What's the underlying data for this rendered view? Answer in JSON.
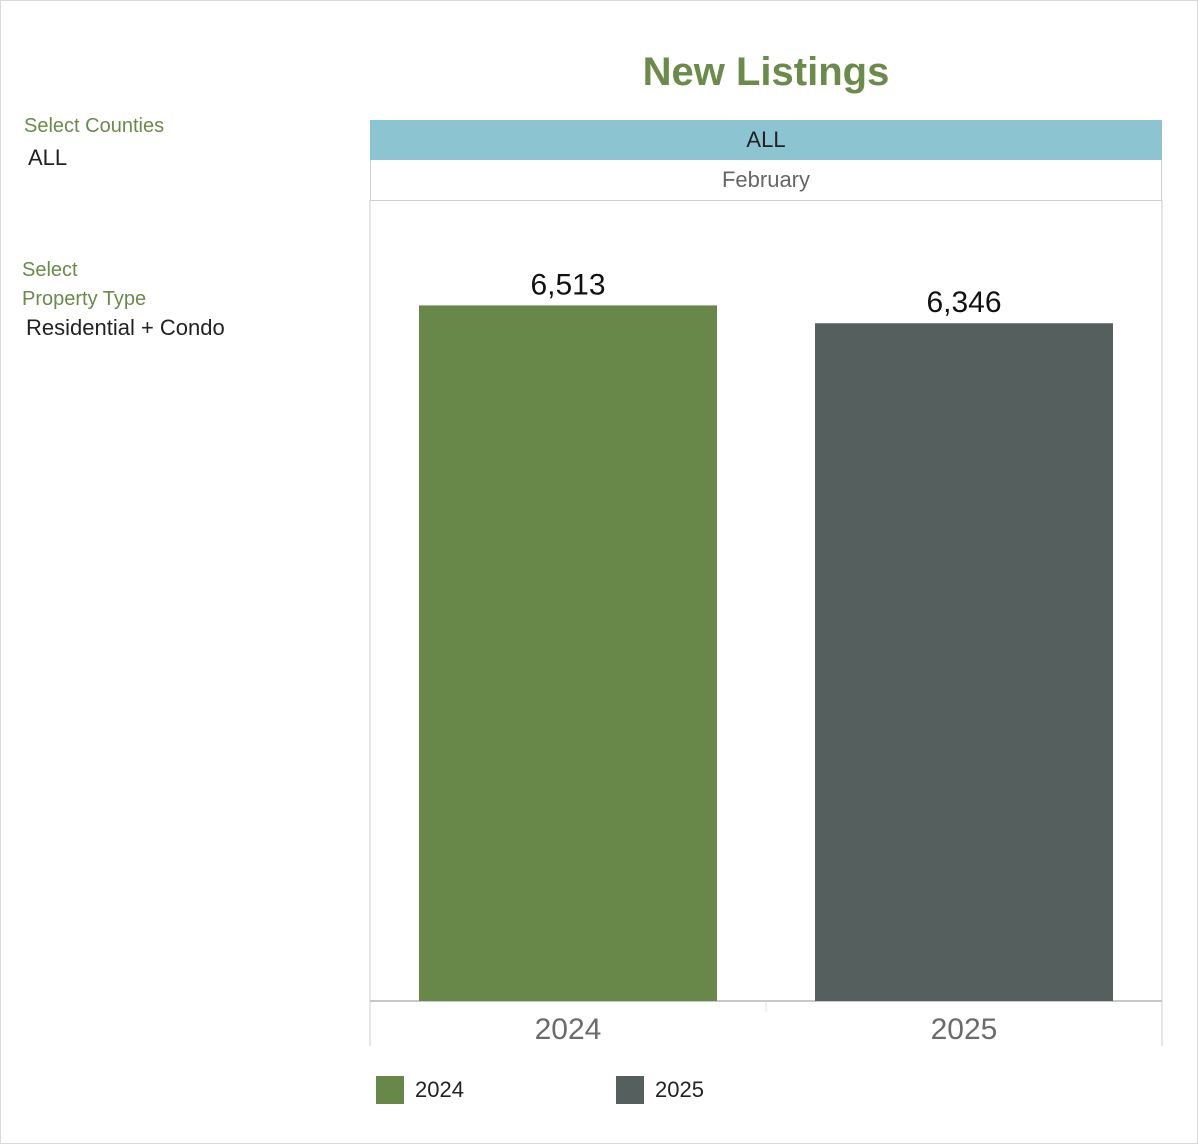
{
  "filters": {
    "counties_label": "Select Counties",
    "counties_value": "ALL",
    "property_label_line1": "Select",
    "property_label_line2": "Property Type",
    "property_value": "Residential + Condo"
  },
  "chart_data": {
    "type": "bar",
    "title": "New Listings",
    "panel_header": "ALL",
    "period": "February",
    "categories": [
      "2024",
      "2025"
    ],
    "values": [
      6513,
      6346
    ],
    "data_labels": [
      "6,513",
      "6,346"
    ],
    "colors": [
      "#688849",
      "#555f5d"
    ],
    "ylim": [
      0,
      7500
    ],
    "grid": false,
    "legend": {
      "position": "bottom-left",
      "entries": [
        {
          "label": "2024",
          "color": "#688849"
        },
        {
          "label": "2025",
          "color": "#555f5d"
        }
      ]
    }
  }
}
